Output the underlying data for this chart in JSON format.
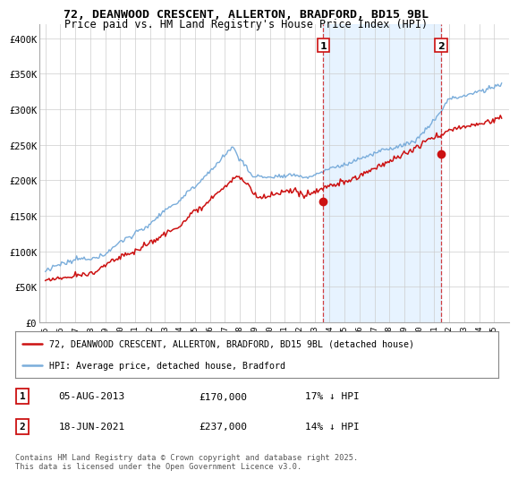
{
  "title_line1": "72, DEANWOOD CRESCENT, ALLERTON, BRADFORD, BD15 9BL",
  "title_line2": "Price paid vs. HM Land Registry's House Price Index (HPI)",
  "ylim": [
    0,
    420000
  ],
  "yticks": [
    0,
    50000,
    100000,
    150000,
    200000,
    250000,
    300000,
    350000,
    400000
  ],
  "ytick_labels": [
    "£0",
    "£50K",
    "£100K",
    "£150K",
    "£200K",
    "£250K",
    "£300K",
    "£350K",
    "£400K"
  ],
  "bg_color": "#ffffff",
  "plot_bg_color": "#ffffff",
  "grid_color": "#cccccc",
  "shade_color": "#ddeeff",
  "hpi_color": "#7aaddb",
  "price_color": "#cc1111",
  "marker1_year": 2013.58,
  "marker1_value": 170000,
  "marker2_year": 2021.46,
  "marker2_value": 237000,
  "vline_color": "#cc1111",
  "legend_label_red": "72, DEANWOOD CRESCENT, ALLERTON, BRADFORD, BD15 9BL (detached house)",
  "legend_label_blue": "HPI: Average price, detached house, Bradford",
  "annotation1_date": "05-AUG-2013",
  "annotation1_price": "£170,000",
  "annotation1_hpi": "17% ↓ HPI",
  "annotation2_date": "18-JUN-2021",
  "annotation2_price": "£237,000",
  "annotation2_hpi": "14% ↓ HPI",
  "footer": "Contains HM Land Registry data © Crown copyright and database right 2025.\nThis data is licensed under the Open Government Licence v3.0."
}
